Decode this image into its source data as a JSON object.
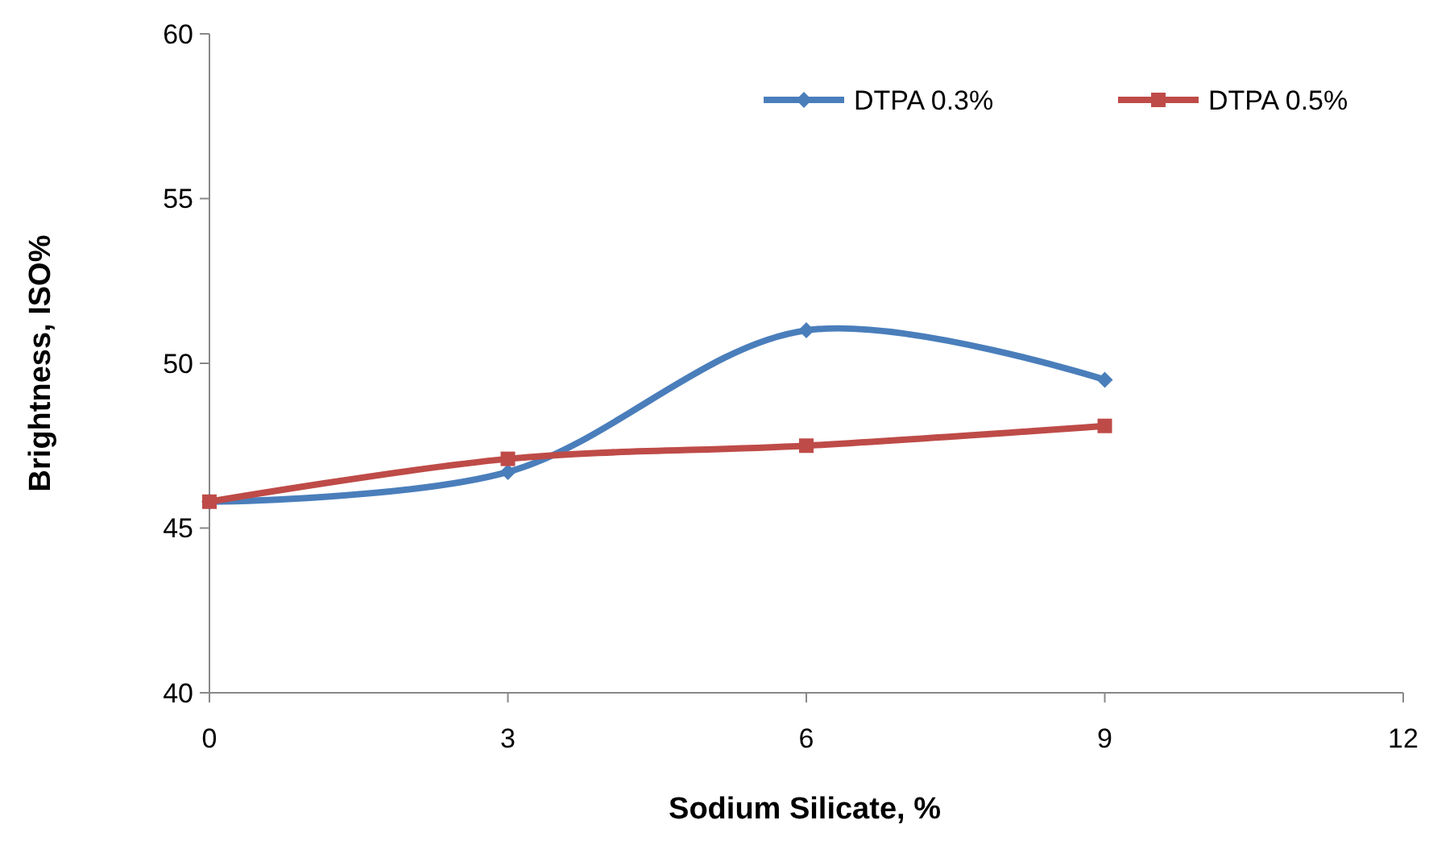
{
  "chart_data": {
    "type": "line",
    "xlabel": "Sodium Silicate, %",
    "ylabel": "Brightness, ISO%",
    "x": [
      0,
      3,
      6,
      9
    ],
    "series": [
      {
        "name": "DTPA 0.3%",
        "color": "#4a7ebb",
        "values": [
          45.8,
          46.7,
          51.0,
          49.5
        ],
        "marker": "diamond"
      },
      {
        "name": "DTPA 0.5%",
        "color": "#be4b48",
        "values": [
          45.8,
          47.1,
          47.5,
          48.1
        ],
        "marker": "square"
      }
    ],
    "xlim": [
      0,
      12
    ],
    "xticks": [
      0,
      3,
      6,
      9,
      12
    ],
    "ylim": [
      40,
      60
    ],
    "yticks": [
      40,
      45,
      50,
      55,
      60
    ],
    "grid": false,
    "legend": "top right",
    "line_style": "solid"
  }
}
